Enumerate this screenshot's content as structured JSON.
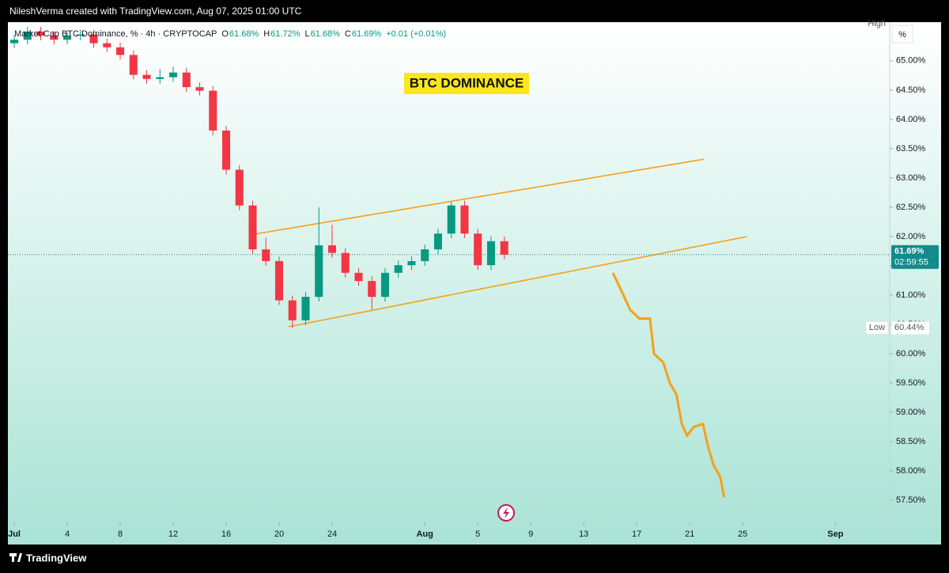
{
  "header": {
    "credit": "NileshVerma created with TradingView.com, Aug 07, 2025 01:00 UTC"
  },
  "footer": {
    "brand": "TradingView"
  },
  "chart_data": {
    "type": "candlestick",
    "annotation": "BTC DOMINANCE",
    "legend": {
      "symbol": "Market Cap BTC Dominance, % · 4h · CRYPTOCAP",
      "ohlc": [
        {
          "key": "O",
          "value": "61.68%"
        },
        {
          "key": "H",
          "value": "61.72%"
        },
        {
          "key": "L",
          "value": "61.68%"
        },
        {
          "key": "C",
          "value": "61.69%"
        }
      ],
      "change": "+0.01 (+0.01%)"
    },
    "unit_button": "%",
    "up_color": "#089981",
    "down_color": "#f23645",
    "x": [
      0,
      1,
      2,
      3,
      4,
      5,
      6,
      7,
      8,
      9,
      10,
      11,
      12,
      13,
      14,
      15,
      16,
      17,
      18,
      19,
      20,
      21,
      22,
      23,
      24,
      25,
      26,
      27,
      28,
      29,
      30,
      31,
      32,
      33,
      34,
      35,
      36,
      37
    ],
    "open": [
      65.3,
      65.36,
      65.5,
      65.43,
      65.36,
      65.43,
      65.45,
      65.3,
      65.23,
      65.1,
      64.76,
      64.69,
      64.72,
      64.8,
      64.55,
      64.49,
      63.81,
      63.14,
      62.53,
      61.78,
      61.58,
      60.91,
      60.57,
      60.97,
      61.85,
      61.72,
      61.38,
      61.24,
      60.97,
      61.38,
      61.51,
      61.58,
      61.78,
      62.05,
      62.53,
      62.05,
      61.51,
      61.92
    ],
    "high": [
      65.44,
      65.58,
      65.58,
      65.51,
      65.51,
      65.53,
      65.53,
      65.38,
      65.31,
      65.18,
      64.84,
      64.86,
      64.9,
      64.88,
      64.63,
      64.57,
      63.89,
      63.22,
      62.61,
      61.98,
      61.66,
      60.99,
      61.05,
      62.5,
      62.2,
      61.8,
      61.46,
      61.32,
      61.46,
      61.59,
      61.66,
      61.86,
      62.13,
      62.59,
      62.61,
      62.13,
      62.0,
      62.0
    ],
    "low": [
      65.22,
      65.28,
      65.35,
      65.28,
      65.28,
      65.35,
      65.22,
      65.15,
      65.02,
      64.68,
      64.61,
      64.61,
      64.64,
      64.47,
      64.41,
      63.73,
      63.06,
      62.45,
      61.7,
      61.5,
      60.83,
      60.44,
      60.49,
      60.89,
      61.64,
      61.3,
      61.16,
      60.75,
      60.89,
      61.3,
      61.43,
      61.5,
      61.7,
      61.97,
      61.97,
      61.43,
      61.43,
      61.61
    ],
    "close": [
      65.36,
      65.5,
      65.43,
      65.36,
      65.43,
      65.45,
      65.3,
      65.23,
      65.1,
      64.76,
      64.69,
      64.72,
      64.8,
      64.55,
      64.49,
      63.81,
      63.14,
      62.53,
      61.78,
      61.58,
      60.91,
      60.57,
      60.97,
      61.85,
      61.72,
      61.38,
      61.24,
      60.97,
      61.38,
      61.51,
      61.58,
      61.78,
      62.05,
      62.53,
      62.05,
      61.51,
      61.92,
      61.69
    ],
    "projection": {
      "color": "#f5a11a",
      "x": [
        45.2,
        46.0,
        46.5,
        47.2,
        48.0,
        48.3,
        49.0,
        49.5,
        50.0,
        50.4,
        50.8,
        51.3,
        52.0,
        52.4,
        52.8,
        53.3,
        53.6
      ],
      "values": [
        61.38,
        61.0,
        60.75,
        60.6,
        60.6,
        60.0,
        59.85,
        59.5,
        59.3,
        58.8,
        58.6,
        58.75,
        58.8,
        58.4,
        58.1,
        57.9,
        57.55
      ]
    },
    "trend_color": "#f5a11a",
    "trend_lines": [
      {
        "x": [
          17.85,
          52.06
        ],
        "values": [
          62.03,
          63.32
        ]
      },
      {
        "x": [
          20.72,
          55.34
        ],
        "values": [
          60.46,
          62.0
        ]
      }
    ],
    "last_price": {
      "value": 61.69,
      "label": "61.69%",
      "countdown": "02:59:55",
      "color": "#138a8c"
    },
    "high_marker": {
      "label": "High"
    },
    "low_marker": {
      "label": "Low",
      "value": 60.44,
      "value_label": "60.44%"
    },
    "xlim": [
      -0.48,
      66.1
    ],
    "xticks": [
      {
        "value": 0,
        "label": "Jul"
      },
      4,
      8,
      12,
      16,
      20,
      24,
      {
        "value": 31,
        "label": "Aug"
      },
      {
        "value": 35,
        "label": "5"
      },
      {
        "value": 39,
        "label": "9"
      },
      {
        "value": 43,
        "label": "13"
      },
      {
        "value": 47,
        "label": "17"
      },
      {
        "value": 51,
        "label": "21"
      },
      {
        "value": 55,
        "label": "25"
      },
      {
        "value": 62,
        "label": "Sep"
      }
    ],
    "ylim": [
      57.12,
      65.66
    ],
    "yticks": [
      {
        "value": 57.5,
        "label": "57.50%"
      },
      {
        "value": 58,
        "label": "58.00%"
      },
      {
        "value": 58.5,
        "label": "58.50%"
      },
      {
        "value": 59,
        "label": "59.00%"
      },
      {
        "value": 59.5,
        "label": "59.50%"
      },
      {
        "value": 60,
        "label": "60.00%"
      },
      {
        "value": 60.5,
        "label": "60.50%"
      },
      {
        "value": 61,
        "label": "61.00%"
      },
      {
        "value": 61.5,
        "label": "61.50%"
      },
      {
        "value": 62,
        "label": "62.00%"
      },
      {
        "value": 62.5,
        "label": "62.50%"
      },
      {
        "value": 63,
        "label": "63.00%"
      },
      {
        "value": 63.5,
        "label": "63.50%"
      },
      {
        "value": 64,
        "label": "64.00%"
      },
      {
        "value": 64.5,
        "label": "64.50%"
      },
      {
        "value": 65,
        "label": "65.00%"
      }
    ]
  }
}
